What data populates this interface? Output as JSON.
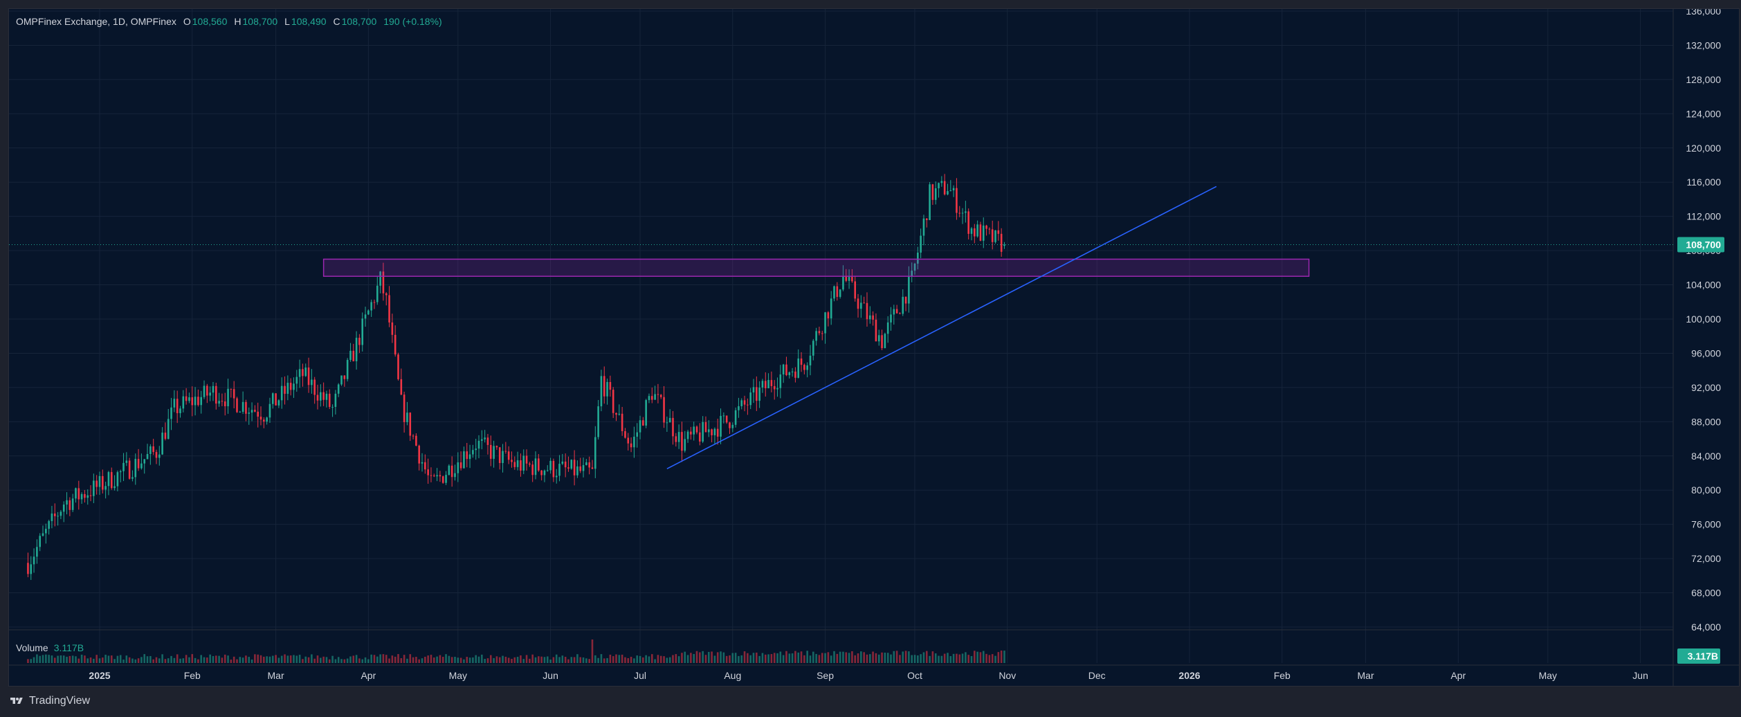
{
  "header": {
    "symbol": "OMPFinex Exchange, 1D, OMPFinex",
    "open_label": "O",
    "open": "108,560",
    "high_label": "H",
    "high": "108,700",
    "low_label": "L",
    "low": "108,490",
    "close_label": "C",
    "close": "108,700",
    "change": "190 (+0.18%)"
  },
  "volume_legend": {
    "label": "Volume",
    "value": "3.117B"
  },
  "footer": {
    "brand": "TradingView"
  },
  "colors": {
    "up": "#22ab94",
    "down": "#f23645",
    "trendline": "#2962ff",
    "zone": "#9c27b0",
    "background": "#07152a",
    "grid": "#16243a"
  },
  "chart_data": {
    "type": "candlestick",
    "symbol": "OMPFinex Exchange",
    "interval": "1D",
    "last_price": 108700,
    "last_price_label": "108,700",
    "volume_badge": "3.117B",
    "y_ticks": [
      "136,000",
      "132,000",
      "128,000",
      "124,000",
      "120,000",
      "116,000",
      "112,000",
      "108,000",
      "104,000",
      "100,000",
      "96,000",
      "92,000",
      "88,000",
      "84,000",
      "80,000",
      "76,000",
      "72,000",
      "68,000",
      "64,000"
    ],
    "x_ticks": [
      "2025",
      "Feb",
      "Mar",
      "Apr",
      "May",
      "Jun",
      "Jul",
      "Aug",
      "Sep",
      "Oct",
      "Nov",
      "Dec",
      "2026",
      "Feb",
      "Mar",
      "Apr",
      "May",
      "Jun"
    ],
    "bold_x_ticks": [
      "2025",
      "2026"
    ],
    "ylim": [
      62000,
      137000
    ],
    "price_path": [
      {
        "date": "2024-12-08",
        "price": 71500
      },
      {
        "date": "2024-12-20",
        "price": 78500
      },
      {
        "date": "2025-01-01",
        "price": 80500
      },
      {
        "date": "2025-01-20",
        "price": 84500
      },
      {
        "date": "2025-01-26",
        "price": 89500
      },
      {
        "date": "2025-02-08",
        "price": 91500
      },
      {
        "date": "2025-02-25",
        "price": 89000
      },
      {
        "date": "2025-03-10",
        "price": 93500
      },
      {
        "date": "2025-03-20",
        "price": 89500
      },
      {
        "date": "2025-04-05",
        "price": 104500
      },
      {
        "date": "2025-04-07",
        "price": 102000
      },
      {
        "date": "2025-04-12",
        "price": 90000
      },
      {
        "date": "2025-04-22",
        "price": 80500
      },
      {
        "date": "2025-05-07",
        "price": 85500
      },
      {
        "date": "2025-05-20",
        "price": 83000
      },
      {
        "date": "2025-06-15",
        "price": 82000
      },
      {
        "date": "2025-06-18",
        "price": 93000
      },
      {
        "date": "2025-06-28",
        "price": 85000
      },
      {
        "date": "2025-07-05",
        "price": 91500
      },
      {
        "date": "2025-07-15",
        "price": 85500
      },
      {
        "date": "2025-07-30",
        "price": 88000
      },
      {
        "date": "2025-08-15",
        "price": 93000
      },
      {
        "date": "2025-08-25",
        "price": 95000
      },
      {
        "date": "2025-09-07",
        "price": 105000
      },
      {
        "date": "2025-09-20",
        "price": 97500
      },
      {
        "date": "2025-09-30",
        "price": 104500
      },
      {
        "date": "2025-10-06",
        "price": 114500
      },
      {
        "date": "2025-10-12",
        "price": 115500
      },
      {
        "date": "2025-10-20",
        "price": 110500
      },
      {
        "date": "2025-10-31",
        "price": 108700
      }
    ],
    "volume_spike": {
      "date": "2025-06-15"
    },
    "trendline": {
      "start": {
        "date": "2025-07-10",
        "price": 82500
      },
      "end": {
        "date": "2026-01-10",
        "price": 115500
      }
    },
    "support_zone": {
      "start_date": "2025-03-17",
      "end_date": "2026-02-10",
      "price_low": 105000,
      "price_high": 107000
    }
  }
}
